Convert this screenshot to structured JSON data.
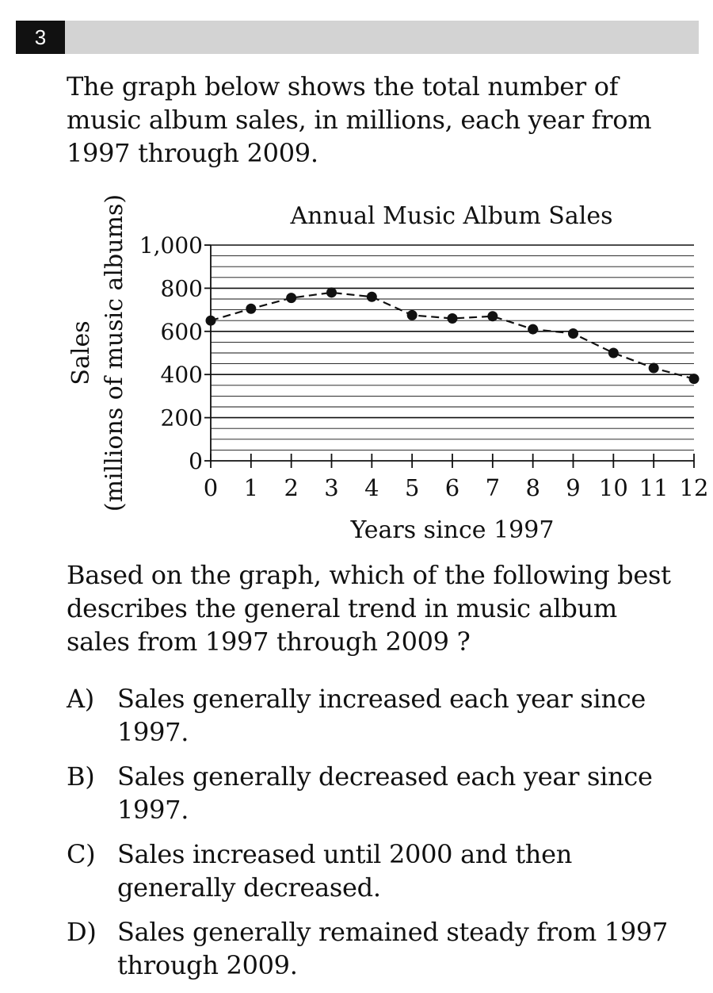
{
  "question": {
    "number": "3",
    "prompt": "The graph below shows the total number of music album sales, in millions, each year from 1997 through 2009.",
    "followup": "Based on the graph, which of the following best describes the general trend in music album sales from 1997 through 2009 ?"
  },
  "choices": [
    {
      "letter": "A)",
      "text": "Sales generally increased each year since 1997."
    },
    {
      "letter": "B)",
      "text": "Sales generally decreased each year since 1997."
    },
    {
      "letter": "C)",
      "text": "Sales increased until 2000 and then generally decreased."
    },
    {
      "letter": "D)",
      "text": "Sales generally remained steady from 1997 through 2009."
    }
  ],
  "chart_data": {
    "type": "line",
    "title": "Annual Music Album Sales",
    "xlabel": "Years since 1997",
    "ylabel": "Sales",
    "ylabel2": "(millions of music albums)",
    "x": [
      0,
      1,
      2,
      3,
      4,
      5,
      6,
      7,
      8,
      9,
      10,
      11,
      12
    ],
    "values": [
      650,
      705,
      755,
      780,
      760,
      675,
      660,
      670,
      610,
      590,
      500,
      430,
      380
    ],
    "xlim": [
      0,
      12
    ],
    "ylim": [
      0,
      1000
    ],
    "yticks": [
      0,
      200,
      400,
      600,
      800,
      1000
    ],
    "ytick_labels": [
      "0",
      "200",
      "400",
      "600",
      "800",
      "1,000"
    ],
    "xtick_labels": [
      "0",
      "1",
      "2",
      "3",
      "4",
      "5",
      "6",
      "7",
      "8",
      "9",
      "10",
      "11",
      "12"
    ],
    "minor_grid_step": 50,
    "grid": true,
    "line_style": "dashed",
    "marker": "filled-circle",
    "color": "#111111"
  }
}
